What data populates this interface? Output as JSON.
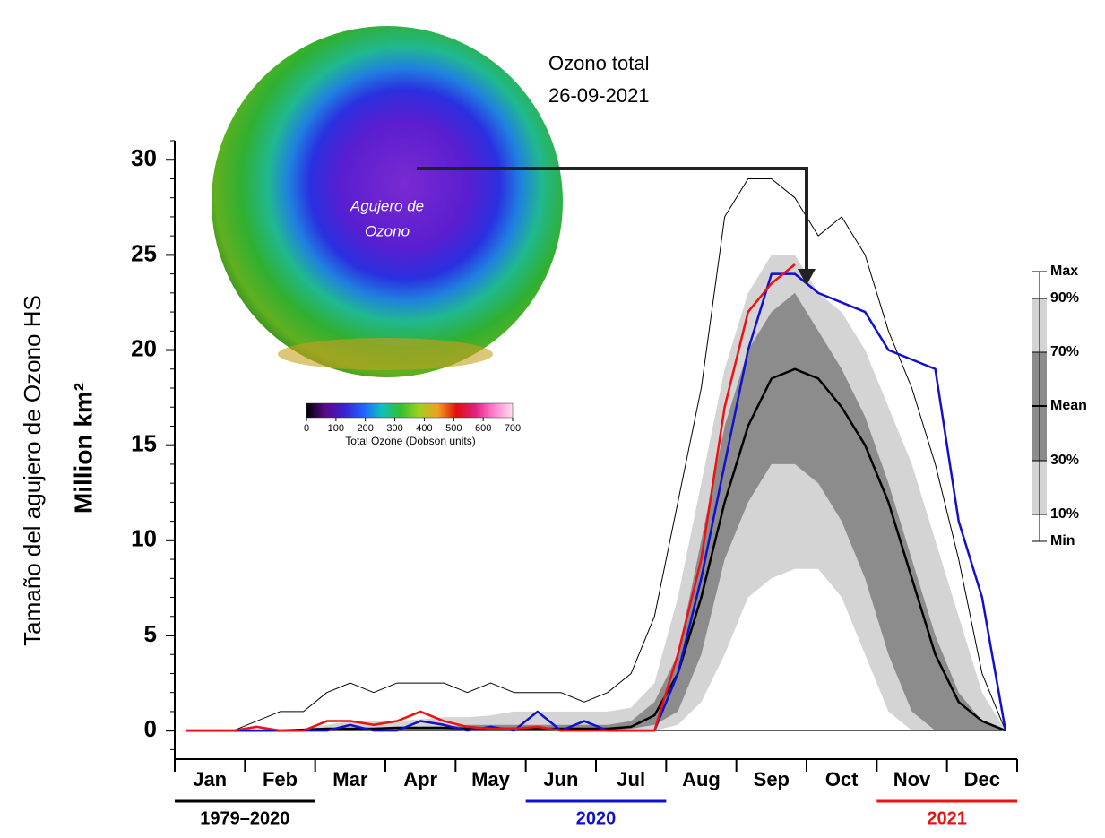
{
  "chart_data": {
    "type": "line",
    "annotation_title": [
      "Ozono total",
      "26-09-2021"
    ],
    "hole_label": [
      "Agujero de",
      "Ozono"
    ],
    "y_title_outer": "Tamaño del agujero de Ozono HS",
    "y_title": "Million km²",
    "categories": [
      null,
      "Jan",
      null,
      null,
      "Feb",
      null,
      null,
      "Mar",
      null,
      null,
      "Apr",
      null,
      null,
      "May",
      null,
      null,
      "Jun",
      null,
      null,
      "Jul",
      null,
      null,
      "Aug",
      null,
      null,
      "Sep",
      null,
      null,
      "Oct",
      null,
      null,
      "Nov",
      null,
      null,
      "Dec",
      null
    ],
    "ylim": [
      -1.5,
      31
    ],
    "yticks": [
      0,
      5,
      10,
      15,
      20,
      25,
      30
    ],
    "bands": [
      {
        "upper": {
          "name": "90%",
          "values": [
            0,
            0,
            0,
            0,
            0,
            0.1,
            0.3,
            0.5,
            0.5,
            0.5,
            0.6,
            0.7,
            0.7,
            0.8,
            1,
            1,
            1,
            1,
            1,
            1.2,
            2.5,
            7,
            13,
            19,
            23,
            25,
            25,
            23,
            22,
            20,
            17,
            14,
            10,
            6,
            2,
            0
          ]
        },
        "lower": {
          "name": "10%",
          "values": [
            0,
            0,
            0,
            0,
            0,
            0,
            0,
            0,
            0,
            0,
            0,
            0,
            0,
            0,
            0,
            0,
            0,
            0,
            0,
            0,
            0,
            0.3,
            1.5,
            4,
            7,
            8,
            8.5,
            8.5,
            7,
            4,
            1,
            0,
            0,
            0,
            0,
            0
          ]
        },
        "color": "#d4d4d4"
      },
      {
        "upper": {
          "name": "70%",
          "values": [
            0,
            0,
            0,
            0,
            0,
            0,
            0.1,
            0.1,
            0.1,
            0.2,
            0.2,
            0.2,
            0.3,
            0.3,
            0.3,
            0.3,
            0.3,
            0.3,
            0.3,
            0.5,
            1.5,
            4,
            10,
            16,
            20,
            22,
            23,
            21,
            19,
            16.5,
            13,
            9,
            5,
            2,
            0.5,
            0
          ]
        },
        "lower": {
          "name": "30%",
          "values": [
            0,
            0,
            0,
            0,
            0,
            0,
            0,
            0,
            0,
            0,
            0,
            0,
            0,
            0,
            0,
            0,
            0,
            0,
            0,
            0.1,
            0.3,
            1,
            4,
            9,
            12,
            14,
            14,
            13,
            11,
            8,
            4,
            1,
            0,
            0,
            0,
            0
          ]
        },
        "color": "#8c8c8c"
      }
    ],
    "series": [
      {
        "name": "Max",
        "color": "#000000",
        "width": 1,
        "values": [
          0,
          0,
          0,
          0.5,
          1,
          1,
          2,
          2.5,
          2,
          2.5,
          2.5,
          2.5,
          2,
          2.5,
          2,
          2,
          2,
          1.5,
          2,
          3,
          6,
          12,
          18,
          27,
          29,
          29,
          28,
          26,
          27,
          25,
          21,
          18,
          14,
          9,
          3,
          0
        ]
      },
      {
        "name": "Min",
        "color": "#000000",
        "width": 1,
        "values": [
          0,
          0,
          0,
          0,
          0,
          0,
          0,
          0,
          0,
          0,
          0,
          0,
          0,
          0,
          0,
          0,
          0,
          0,
          0,
          0,
          0,
          0,
          0,
          0,
          0,
          0,
          0,
          0,
          0,
          0,
          0,
          0,
          0,
          0,
          0,
          0
        ]
      },
      {
        "name": "Mean",
        "color": "#000000",
        "width": 2.5,
        "values": [
          0,
          0,
          0,
          0,
          0,
          0.05,
          0.1,
          0.1,
          0.1,
          0.15,
          0.15,
          0.15,
          0.1,
          0.1,
          0.1,
          0.1,
          0.1,
          0.1,
          0.1,
          0.2,
          0.8,
          3,
          7,
          12,
          16,
          18.5,
          19,
          18.5,
          17,
          15,
          12,
          8,
          4,
          1.5,
          0.5,
          0
        ]
      },
      {
        "name": "2020",
        "color": "#1010d0",
        "width": 2.5,
        "values": [
          0,
          0,
          0,
          0,
          0,
          0,
          0,
          0.3,
          0,
          0,
          0.5,
          0.3,
          0,
          0.2,
          0,
          1,
          0,
          0.5,
          0,
          0,
          0,
          3,
          8,
          14,
          20,
          24,
          24,
          23,
          22.5,
          22,
          20,
          19.5,
          19,
          11,
          7,
          0
        ]
      },
      {
        "name": "2021",
        "color": "#ee1111",
        "width": 2.5,
        "values": [
          0,
          0,
          0,
          0.2,
          0,
          0,
          0.5,
          0.5,
          0.3,
          0.5,
          1,
          0.5,
          0.2,
          0.1,
          0.1,
          0.2,
          0,
          0,
          0,
          0,
          0,
          4,
          9,
          17,
          22,
          23.5,
          24.5,
          null,
          null,
          null,
          null,
          null,
          null,
          null,
          null,
          null
        ]
      }
    ],
    "legend_order": [
      "Max",
      "90%",
      "70%",
      "Mean",
      "30%",
      "10%",
      "Min"
    ],
    "periods": [
      {
        "label": "1979–2020",
        "color": "#000000",
        "from": "Jan",
        "to": "Feb"
      },
      {
        "label": "2020",
        "color": "#1010d0",
        "from": "Jun",
        "to": "Jul"
      },
      {
        "label": "2021",
        "color": "#ee1111",
        "from": "Nov",
        "to": "Dec"
      }
    ],
    "colorbar": {
      "ticks": [
        0,
        100,
        200,
        300,
        400,
        500,
        600,
        700
      ],
      "label": "Total Ozone (Dobson units)",
      "colors": [
        "#000000",
        "#5a0a8a",
        "#3a20d0",
        "#2060ff",
        "#10c0c0",
        "#30c030",
        "#a0d020",
        "#f0a020",
        "#e01010",
        "#e02080",
        "#ff80d0",
        "#ffe0f0"
      ]
    }
  }
}
